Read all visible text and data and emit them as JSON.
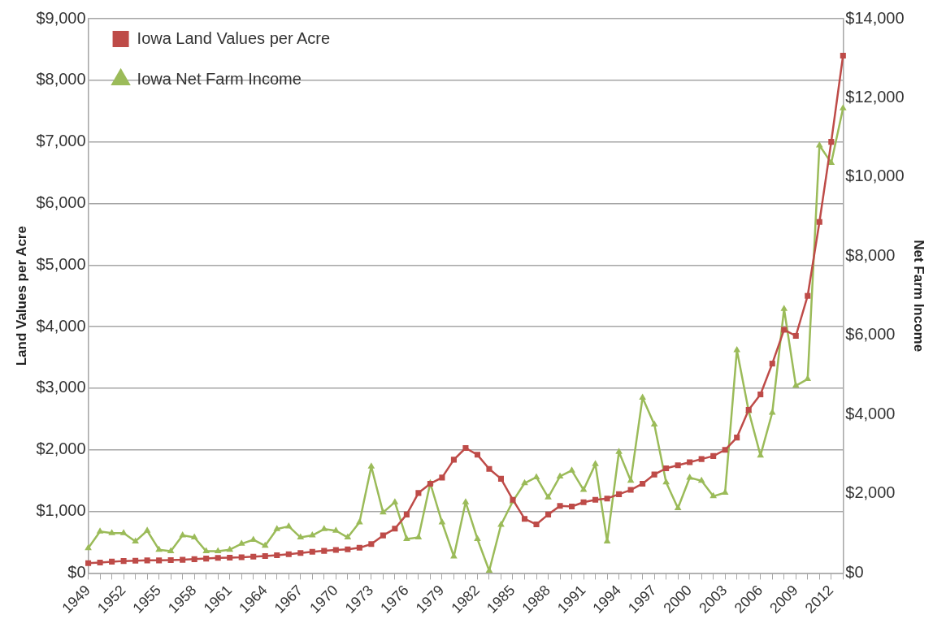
{
  "chart_data": {
    "type": "line",
    "xlabel": null,
    "ylabel": "Land Values per Acre",
    "y2label": "Net Farm Income",
    "categories": [
      "1949",
      null,
      null,
      "1952",
      null,
      null,
      "1955",
      null,
      null,
      "1958",
      null,
      null,
      "1961",
      null,
      null,
      "1964",
      null,
      null,
      "1967",
      null,
      null,
      "1970",
      null,
      null,
      "1973",
      null,
      null,
      "1976",
      null,
      null,
      "1979",
      null,
      null,
      "1982",
      null,
      null,
      "1985",
      null,
      null,
      "1988",
      null,
      null,
      "1991",
      null,
      null,
      "1994",
      null,
      null,
      "1997",
      null,
      null,
      "2000",
      null,
      null,
      "2003",
      null,
      null,
      "2006",
      null,
      null,
      "2009",
      null,
      null,
      "2012",
      null
    ],
    "series": [
      {
        "name": "Iowa Land Values per Acre",
        "color": "#be4b48",
        "marker": "square",
        "axis": "y",
        "values": [
          160,
          170,
          185,
          195,
          200,
          205,
          205,
          210,
          215,
          225,
          235,
          245,
          250,
          255,
          265,
          275,
          290,
          305,
          325,
          345,
          360,
          375,
          385,
          410,
          470,
          610,
          720,
          950,
          1300,
          1450,
          1550,
          1840,
          2030,
          1920,
          1690,
          1530,
          1190,
          880,
          790,
          950,
          1090,
          1080,
          1150,
          1190,
          1210,
          1280,
          1350,
          1450,
          1600,
          1700,
          1750,
          1800,
          1850,
          1900,
          2000,
          2200,
          2650,
          2900,
          3400,
          3950,
          3850,
          4500,
          5700,
          7000,
          8400
        ]
      },
      {
        "name": "Iowa Net Farm Income",
        "color": "#9bbb59",
        "marker": "triangle",
        "axis": "y2",
        "values": [
          630,
          1050,
          1010,
          1010,
          800,
          1070,
          590,
          550,
          950,
          900,
          550,
          550,
          590,
          740,
          840,
          690,
          1110,
          1180,
          900,
          950,
          1110,
          1070,
          900,
          1280,
          2690,
          1530,
          1790,
          860,
          900,
          2270,
          1280,
          420,
          1790,
          860,
          60,
          1220,
          1810,
          2270,
          2420,
          1910,
          2440,
          2590,
          2100,
          2750,
          800,
          3060,
          2330,
          4430,
          3750,
          2290,
          1640,
          2410,
          2330,
          1940,
          2030,
          5630,
          4090,
          2970,
          4050,
          6670,
          4730,
          4900,
          10800,
          10360,
          11740
        ]
      }
    ],
    "ylim": [
      0,
      9000
    ],
    "yticks": [
      {
        "value": 0,
        "label": "$0"
      },
      {
        "value": 1000,
        "label": "$1,000"
      },
      {
        "value": 2000,
        "label": "$2,000"
      },
      {
        "value": 3000,
        "label": "$3,000"
      },
      {
        "value": 4000,
        "label": "$4,000"
      },
      {
        "value": 5000,
        "label": "$5,000"
      },
      {
        "value": 6000,
        "label": "$6,000"
      },
      {
        "value": 7000,
        "label": "$7,000"
      },
      {
        "value": 8000,
        "label": "$8,000"
      },
      {
        "value": 9000,
        "label": "$9,000"
      }
    ],
    "y2lim": [
      0,
      14000
    ],
    "y2ticks": [
      {
        "value": 0,
        "label": "$0"
      },
      {
        "value": 2000,
        "label": "$2,000"
      },
      {
        "value": 4000,
        "label": "$4,000"
      },
      {
        "value": 6000,
        "label": "$6,000"
      },
      {
        "value": 8000,
        "label": "$8,000"
      },
      {
        "value": 10000,
        "label": "$10,000"
      },
      {
        "value": 12000,
        "label": "$12,000"
      },
      {
        "value": 14000,
        "label": "$14,000"
      }
    ],
    "grid": "y",
    "legend": "top left",
    "line_style": "solid"
  }
}
